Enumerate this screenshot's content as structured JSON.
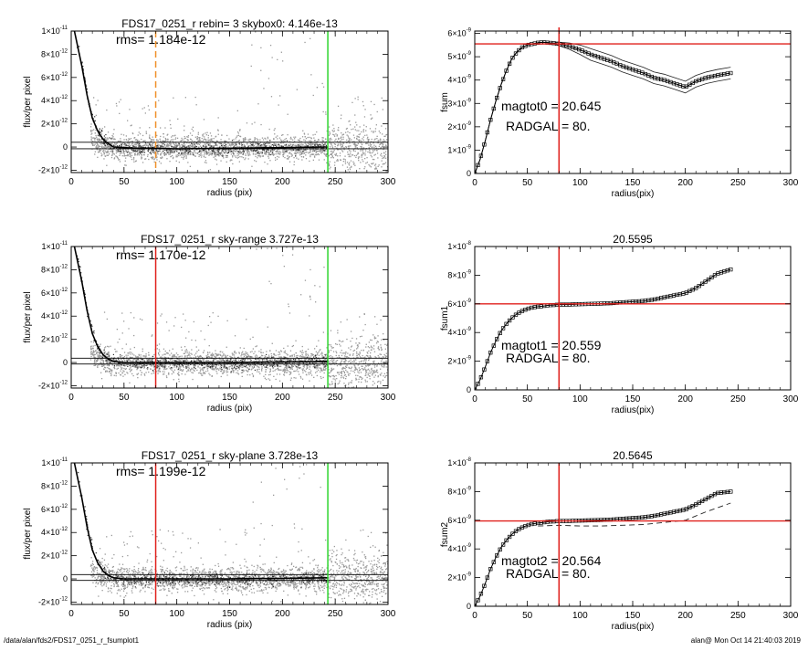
{
  "footer": {
    "path": "/data/alan/fds2/FDS17_0251_r_fsumplot1",
    "stamp": "alan@  Mon Oct 14 21:40:03 2019"
  },
  "colors": {
    "points": "#9a9a9a",
    "profile": "#000000",
    "green_line": "#2fd42f",
    "red_line": "#e0201c",
    "orange_dash": "#f0902a"
  },
  "chart_data": [
    {
      "id": "flux-1",
      "type": "scatter",
      "title": "FDS17_0251_r rebin= 3    skybox0:  4.146e-13",
      "annotation": "rms= 1.184e-12",
      "xlabel": "radius (pix)",
      "ylabel": "flux/per pixel",
      "xlim": [
        0,
        300
      ],
      "ylim": [
        -2.2e-12,
        1e-11
      ],
      "xticks": [
        0,
        50,
        100,
        150,
        200,
        250,
        300
      ],
      "yticks": [
        -2e-12,
        0,
        2e-12,
        4e-12,
        6e-12,
        8e-12,
        1e-11
      ],
      "ytick_labels": [
        [
          "-2",
          "-12"
        ],
        [
          "0",
          ""
        ],
        [
          "2",
          "-12"
        ],
        [
          "4",
          "-12"
        ],
        [
          "6",
          "-12"
        ],
        [
          "8",
          "-12"
        ],
        [
          "1",
          "-11"
        ]
      ],
      "hlines": [
        4.146e-13,
        -1.5e-13
      ],
      "vlines": [
        {
          "x": 80,
          "style": "orange-dash"
        },
        {
          "x": 243,
          "style": "green"
        }
      ],
      "scatter_note": "background pixel values, dense band around 0 from r=20 to 300, with bright outliers near r=180-230",
      "profile": {
        "x": [
          3,
          10,
          15,
          20,
          25,
          30,
          35,
          40,
          50,
          60,
          80,
          100,
          150,
          200,
          243
        ],
        "y": [
          1e-11,
          7e-12,
          4.5e-12,
          2.5e-12,
          1.4e-12,
          7e-13,
          3e-13,
          0,
          -5e-14,
          -1e-13,
          -1e-13,
          -1.5e-13,
          -1e-13,
          -5e-14,
          0
        ]
      }
    },
    {
      "id": "fsum-0",
      "type": "line",
      "title": "",
      "ylabel": "fsum",
      "xlabel": "radius(pix)",
      "xlim": [
        0,
        300
      ],
      "ylim": [
        0,
        6.1e-09
      ],
      "xticks": [
        0,
        50,
        100,
        150,
        200,
        250,
        300
      ],
      "yticks": [
        0,
        1e-09,
        2e-09,
        3e-09,
        4e-09,
        5e-09,
        6e-09
      ],
      "ytick_labels": [
        [
          "0",
          ""
        ],
        [
          "1",
          "-9"
        ],
        [
          "2",
          "-9"
        ],
        [
          "3",
          "-9"
        ],
        [
          "4",
          "-9"
        ],
        [
          "5",
          "-9"
        ],
        [
          "6",
          "-9"
        ]
      ],
      "annotations": [
        "magtot0 =  20.645",
        "RADGAL =     80."
      ],
      "hline": 5.55e-09,
      "vline": 80,
      "series": {
        "x": [
          0,
          5,
          10,
          15,
          20,
          25,
          30,
          35,
          40,
          45,
          50,
          55,
          60,
          65,
          70,
          75,
          80,
          90,
          100,
          110,
          120,
          130,
          140,
          150,
          160,
          170,
          180,
          190,
          200,
          210,
          220,
          230,
          243
        ],
        "y": [
          0,
          6e-10,
          1.4e-09,
          2.3e-09,
          3.1e-09,
          3.8e-09,
          4.4e-09,
          4.9e-09,
          5.2e-09,
          5.4e-09,
          5.5e-09,
          5.55e-09,
          5.6e-09,
          5.62e-09,
          5.6e-09,
          5.58e-09,
          5.55e-09,
          5.45e-09,
          5.3e-09,
          5.1e-09,
          4.95e-09,
          4.8e-09,
          4.6e-09,
          4.45e-09,
          4.3e-09,
          4.1e-09,
          4e-09,
          3.85e-09,
          3.7e-09,
          3.95e-09,
          4.1e-09,
          4.2e-09,
          4.3e-09
        ]
      },
      "band": 2.5e-10,
      "band_start": 80
    },
    {
      "id": "flux-2",
      "type": "scatter",
      "title": "FDS17_0251_r sky-range  3.727e-13",
      "annotation": "rms= 1.170e-12",
      "xlabel": "radius (pix)",
      "ylabel": "flux/per pixel",
      "xlim": [
        0,
        300
      ],
      "ylim": [
        -2.2e-12,
        1e-11
      ],
      "xticks": [
        0,
        50,
        100,
        150,
        200,
        250,
        300
      ],
      "yticks": [
        -2e-12,
        0,
        2e-12,
        4e-12,
        6e-12,
        8e-12,
        1e-11
      ],
      "ytick_labels": [
        [
          "-2",
          "-12"
        ],
        [
          "0",
          ""
        ],
        [
          "2",
          "-12"
        ],
        [
          "4",
          "-12"
        ],
        [
          "6",
          "-12"
        ],
        [
          "8",
          "-12"
        ],
        [
          "1",
          "-11"
        ]
      ],
      "hlines": [
        3.727e-13,
        -1.3e-13
      ],
      "vlines": [
        {
          "x": 80,
          "style": "red"
        },
        {
          "x": 243,
          "style": "green"
        }
      ],
      "scatter_note": "background pixel values",
      "profile": {
        "x": [
          3,
          10,
          15,
          20,
          25,
          30,
          35,
          40,
          50,
          60,
          80,
          100,
          150,
          200,
          243
        ],
        "y": [
          1e-11,
          7e-12,
          4.5e-12,
          2.5e-12,
          1.4e-12,
          7e-13,
          3e-13,
          1e-13,
          0,
          0,
          0,
          0,
          0,
          5e-14,
          1e-13
        ]
      }
    },
    {
      "id": "fsum-1",
      "type": "line",
      "title": "20.5595",
      "ylabel": "fsum1",
      "xlabel": "radius(pix)",
      "xlim": [
        0,
        300
      ],
      "ylim": [
        0,
        1e-08
      ],
      "xticks": [
        0,
        50,
        100,
        150,
        200,
        250,
        300
      ],
      "yticks": [
        0,
        2e-09,
        4e-09,
        6e-09,
        8e-09,
        1e-08
      ],
      "ytick_labels": [
        [
          "0",
          ""
        ],
        [
          "2",
          "-9"
        ],
        [
          "4",
          "-9"
        ],
        [
          "6",
          "-9"
        ],
        [
          "8",
          "-9"
        ],
        [
          "1",
          "-8"
        ]
      ],
      "annotations": [
        "magtot1 =  20.559",
        "RADGAL =     80."
      ],
      "hline": 6e-09,
      "vline": 80,
      "series": {
        "x": [
          0,
          5,
          10,
          15,
          20,
          25,
          30,
          35,
          40,
          45,
          50,
          55,
          60,
          65,
          70,
          75,
          80,
          90,
          100,
          110,
          120,
          130,
          140,
          150,
          160,
          170,
          180,
          190,
          200,
          210,
          220,
          230,
          243
        ],
        "y": [
          0,
          7e-10,
          1.6e-09,
          2.6e-09,
          3.4e-09,
          4.1e-09,
          4.6e-09,
          5e-09,
          5.3e-09,
          5.5e-09,
          5.65e-09,
          5.75e-09,
          5.8e-09,
          5.85e-09,
          5.9e-09,
          5.92e-09,
          5.95e-09,
          5.95e-09,
          5.98e-09,
          6e-09,
          6.02e-09,
          6.05e-09,
          6.1e-09,
          6.15e-09,
          6.2e-09,
          6.3e-09,
          6.45e-09,
          6.6e-09,
          6.75e-09,
          7.1e-09,
          7.6e-09,
          8.1e-09,
          8.4e-09
        ]
      }
    },
    {
      "id": "flux-3",
      "type": "scatter",
      "title": "FDS17_0251_r sky-plane  3.728e-13",
      "annotation": "rms= 1.199e-12",
      "xlabel": "radius (pix)",
      "ylabel": "flux/per pixel",
      "xlim": [
        0,
        300
      ],
      "ylim": [
        -2.2e-12,
        1e-11
      ],
      "xticks": [
        0,
        50,
        100,
        150,
        200,
        250,
        300
      ],
      "yticks": [
        -2e-12,
        0,
        2e-12,
        4e-12,
        6e-12,
        8e-12,
        1e-11
      ],
      "ytick_labels": [
        [
          "-2",
          "-12"
        ],
        [
          "0",
          ""
        ],
        [
          "2",
          "-12"
        ],
        [
          "4",
          "-12"
        ],
        [
          "6",
          "-12"
        ],
        [
          "8",
          "-12"
        ],
        [
          "1",
          "-11"
        ]
      ],
      "hlines": [
        3.728e-13,
        -1.3e-13
      ],
      "vlines": [
        {
          "x": 80,
          "style": "red"
        },
        {
          "x": 243,
          "style": "green"
        }
      ],
      "scatter_note": "background pixel values",
      "profile": {
        "x": [
          3,
          10,
          15,
          20,
          25,
          30,
          35,
          40,
          50,
          60,
          80,
          100,
          150,
          200,
          243
        ],
        "y": [
          1e-11,
          7e-12,
          4.5e-12,
          2.5e-12,
          1.4e-12,
          7e-13,
          3e-13,
          1e-13,
          0,
          0,
          0,
          0,
          0,
          5e-14,
          1e-13
        ]
      }
    },
    {
      "id": "fsum-2",
      "type": "line",
      "title": "20.5645",
      "ylabel": "fsum2",
      "xlabel": "radius(pix)",
      "xlim": [
        0,
        300
      ],
      "ylim": [
        0,
        1e-08
      ],
      "xticks": [
        0,
        50,
        100,
        150,
        200,
        250,
        300
      ],
      "yticks": [
        0,
        2e-09,
        4e-09,
        6e-09,
        8e-09,
        1e-08
      ],
      "ytick_labels": [
        [
          "0",
          ""
        ],
        [
          "2",
          "-9"
        ],
        [
          "4",
          "-9"
        ],
        [
          "6",
          "-9"
        ],
        [
          "8",
          "-9"
        ],
        [
          "1",
          "-8"
        ]
      ],
      "annotations": [
        "magtot2 =  20.564",
        "RADGAL =     80."
      ],
      "hline": 5.95e-09,
      "vline": 80,
      "series": {
        "x": [
          0,
          5,
          10,
          15,
          20,
          25,
          30,
          35,
          40,
          45,
          50,
          55,
          60,
          65,
          70,
          75,
          80,
          90,
          100,
          110,
          120,
          130,
          140,
          150,
          160,
          170,
          180,
          190,
          200,
          210,
          220,
          230,
          243
        ],
        "y": [
          0,
          7e-10,
          1.6e-09,
          2.6e-09,
          3.4e-09,
          4.1e-09,
          4.6e-09,
          5e-09,
          5.3e-09,
          5.5e-09,
          5.65e-09,
          5.75e-09,
          5.8e-09,
          5.85e-09,
          5.9e-09,
          5.92e-09,
          5.95e-09,
          5.95e-09,
          5.98e-09,
          6e-09,
          6.02e-09,
          6.05e-09,
          6.1e-09,
          6.15e-09,
          6.2e-09,
          6.3e-09,
          6.45e-09,
          6.6e-09,
          6.75e-09,
          7.1e-09,
          7.5e-09,
          7.9e-09,
          8e-09
        ]
      },
      "dashed": {
        "x": [
          60,
          80,
          100,
          120,
          140,
          160,
          180,
          200,
          220,
          243
        ],
        "y": [
          5.6e-09,
          5.65e-09,
          5.6e-09,
          5.6e-09,
          5.65e-09,
          5.7e-09,
          5.85e-09,
          6e-09,
          6.6e-09,
          7.2e-09
        ]
      }
    }
  ]
}
